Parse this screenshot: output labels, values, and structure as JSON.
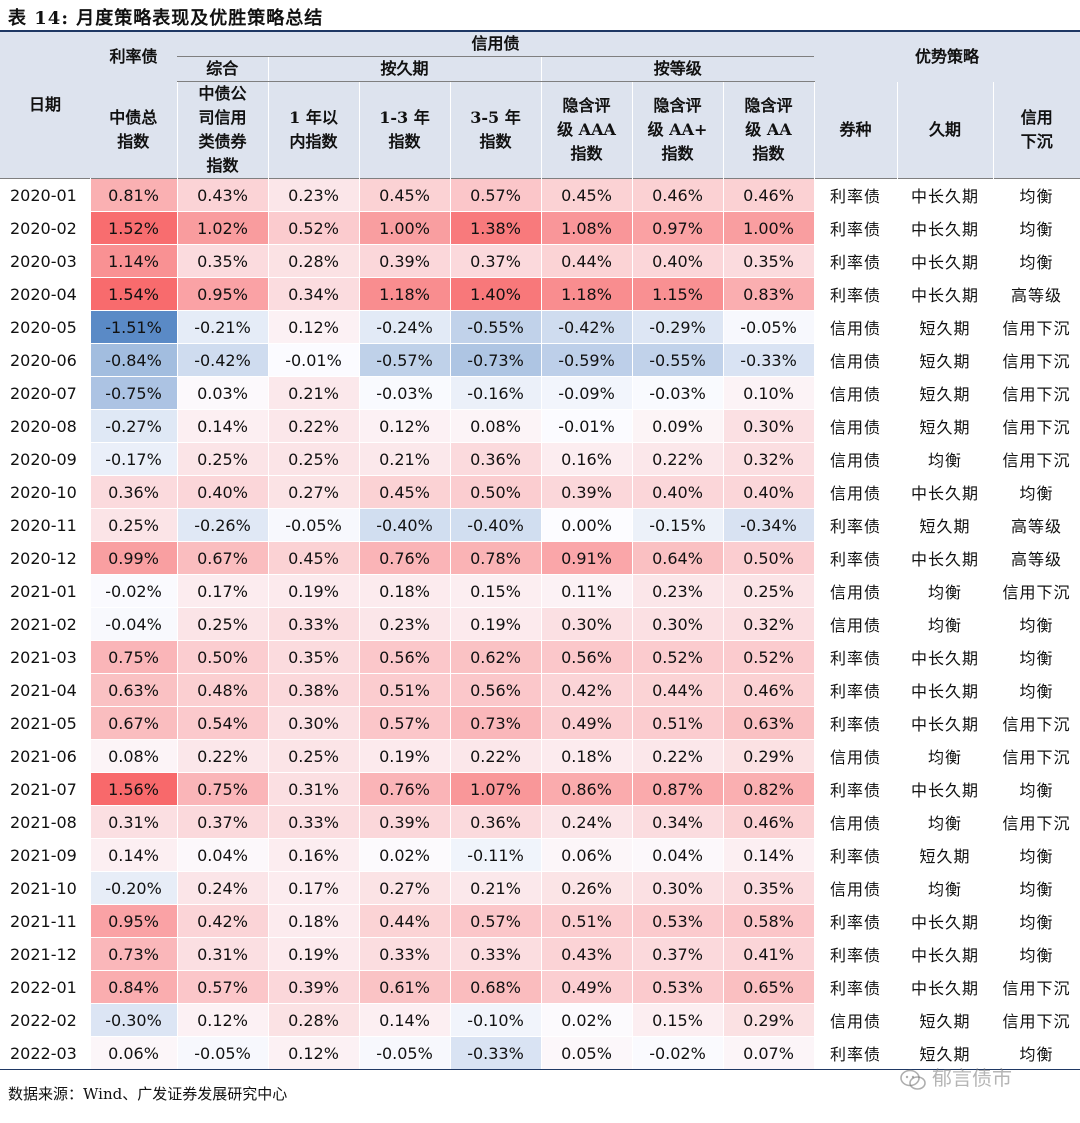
{
  "title": "表 14: 月度策略表现及优胜策略总结",
  "header": {
    "date": "日期",
    "rate_bond": "利率债",
    "credit_bond": "信用债",
    "advantage": "优势策略",
    "composite": "综合",
    "by_duration": "按久期",
    "by_rating": "按等级",
    "columns": [
      "中债总指数",
      "中债公司信用类债券指数",
      "1年以内指数",
      "1-3年指数",
      "3-5年指数",
      "隐含评级AAA指数",
      "隐含评级AA+指数",
      "隐含评级AA指数",
      "券种",
      "久期",
      "信用下沉"
    ]
  },
  "rows": [
    {
      "date": "2020-01",
      "values": [
        "0.81%",
        "0.43%",
        "0.23%",
        "0.45%",
        "0.57%",
        "0.45%",
        "0.46%",
        "0.46%"
      ],
      "nums": [
        0.81,
        0.43,
        0.23,
        0.45,
        0.57,
        0.45,
        0.46,
        0.46
      ],
      "strategy": [
        "利率债",
        "中长久期",
        "均衡"
      ]
    },
    {
      "date": "2020-02",
      "values": [
        "1.52%",
        "1.02%",
        "0.52%",
        "1.00%",
        "1.38%",
        "1.08%",
        "0.97%",
        "1.00%"
      ],
      "nums": [
        1.52,
        1.02,
        0.52,
        1.0,
        1.38,
        1.08,
        0.97,
        1.0
      ],
      "strategy": [
        "利率债",
        "中长久期",
        "均衡"
      ]
    },
    {
      "date": "2020-03",
      "values": [
        "1.14%",
        "0.35%",
        "0.28%",
        "0.39%",
        "0.37%",
        "0.44%",
        "0.40%",
        "0.35%"
      ],
      "nums": [
        1.14,
        0.35,
        0.28,
        0.39,
        0.37,
        0.44,
        0.4,
        0.35
      ],
      "strategy": [
        "利率债",
        "中长久期",
        "均衡"
      ]
    },
    {
      "date": "2020-04",
      "values": [
        "1.54%",
        "0.95%",
        "0.34%",
        "1.18%",
        "1.40%",
        "1.18%",
        "1.15%",
        "0.83%"
      ],
      "nums": [
        1.54,
        0.95,
        0.34,
        1.18,
        1.4,
        1.18,
        1.15,
        0.83
      ],
      "strategy": [
        "利率债",
        "中长久期",
        "高等级"
      ]
    },
    {
      "date": "2020-05",
      "values": [
        "-1.51%",
        "-0.21%",
        "0.12%",
        "-0.24%",
        "-0.55%",
        "-0.42%",
        "-0.29%",
        "-0.05%"
      ],
      "nums": [
        -1.51,
        -0.21,
        0.12,
        -0.24,
        -0.55,
        -0.42,
        -0.29,
        -0.05
      ],
      "strategy": [
        "信用债",
        "短久期",
        "信用下沉"
      ]
    },
    {
      "date": "2020-06",
      "values": [
        "-0.84%",
        "-0.42%",
        "-0.01%",
        "-0.57%",
        "-0.73%",
        "-0.59%",
        "-0.55%",
        "-0.33%"
      ],
      "nums": [
        -0.84,
        -0.42,
        -0.01,
        -0.57,
        -0.73,
        -0.59,
        -0.55,
        -0.33
      ],
      "strategy": [
        "信用债",
        "短久期",
        "信用下沉"
      ]
    },
    {
      "date": "2020-07",
      "values": [
        "-0.75%",
        "0.03%",
        "0.21%",
        "-0.03%",
        "-0.16%",
        "-0.09%",
        "-0.03%",
        "0.10%"
      ],
      "nums": [
        -0.75,
        0.03,
        0.21,
        -0.03,
        -0.16,
        -0.09,
        -0.03,
        0.1
      ],
      "strategy": [
        "信用债",
        "短久期",
        "信用下沉"
      ]
    },
    {
      "date": "2020-08",
      "values": [
        "-0.27%",
        "0.14%",
        "0.22%",
        "0.12%",
        "0.08%",
        "-0.01%",
        "0.09%",
        "0.30%"
      ],
      "nums": [
        -0.27,
        0.14,
        0.22,
        0.12,
        0.08,
        -0.01,
        0.09,
        0.3
      ],
      "strategy": [
        "信用债",
        "短久期",
        "信用下沉"
      ]
    },
    {
      "date": "2020-09",
      "values": [
        "-0.17%",
        "0.25%",
        "0.25%",
        "0.21%",
        "0.36%",
        "0.16%",
        "0.22%",
        "0.32%"
      ],
      "nums": [
        -0.17,
        0.25,
        0.25,
        0.21,
        0.36,
        0.16,
        0.22,
        0.32
      ],
      "strategy": [
        "信用债",
        "均衡",
        "信用下沉"
      ]
    },
    {
      "date": "2020-10",
      "values": [
        "0.36%",
        "0.40%",
        "0.27%",
        "0.45%",
        "0.50%",
        "0.39%",
        "0.40%",
        "0.40%"
      ],
      "nums": [
        0.36,
        0.4,
        0.27,
        0.45,
        0.5,
        0.39,
        0.4,
        0.4
      ],
      "strategy": [
        "信用债",
        "中长久期",
        "均衡"
      ]
    },
    {
      "date": "2020-11",
      "values": [
        "0.25%",
        "-0.26%",
        "-0.05%",
        "-0.40%",
        "-0.40%",
        "0.00%",
        "-0.15%",
        "-0.34%"
      ],
      "nums": [
        0.25,
        -0.26,
        -0.05,
        -0.4,
        -0.4,
        0.0,
        -0.15,
        -0.34
      ],
      "strategy": [
        "利率债",
        "短久期",
        "高等级"
      ]
    },
    {
      "date": "2020-12",
      "values": [
        "0.99%",
        "0.67%",
        "0.45%",
        "0.76%",
        "0.78%",
        "0.91%",
        "0.64%",
        "0.50%"
      ],
      "nums": [
        0.99,
        0.67,
        0.45,
        0.76,
        0.78,
        0.91,
        0.64,
        0.5
      ],
      "strategy": [
        "利率债",
        "中长久期",
        "高等级"
      ]
    },
    {
      "date": "2021-01",
      "values": [
        "-0.02%",
        "0.17%",
        "0.19%",
        "0.18%",
        "0.15%",
        "0.11%",
        "0.23%",
        "0.25%"
      ],
      "nums": [
        -0.02,
        0.17,
        0.19,
        0.18,
        0.15,
        0.11,
        0.23,
        0.25
      ],
      "strategy": [
        "信用债",
        "均衡",
        "信用下沉"
      ]
    },
    {
      "date": "2021-02",
      "values": [
        "-0.04%",
        "0.25%",
        "0.33%",
        "0.23%",
        "0.19%",
        "0.30%",
        "0.30%",
        "0.32%"
      ],
      "nums": [
        -0.04,
        0.25,
        0.33,
        0.23,
        0.19,
        0.3,
        0.3,
        0.32
      ],
      "strategy": [
        "信用债",
        "均衡",
        "均衡"
      ]
    },
    {
      "date": "2021-03",
      "values": [
        "0.75%",
        "0.50%",
        "0.35%",
        "0.56%",
        "0.62%",
        "0.56%",
        "0.52%",
        "0.52%"
      ],
      "nums": [
        0.75,
        0.5,
        0.35,
        0.56,
        0.62,
        0.56,
        0.52,
        0.52
      ],
      "strategy": [
        "利率债",
        "中长久期",
        "均衡"
      ]
    },
    {
      "date": "2021-04",
      "values": [
        "0.63%",
        "0.48%",
        "0.38%",
        "0.51%",
        "0.56%",
        "0.42%",
        "0.44%",
        "0.46%"
      ],
      "nums": [
        0.63,
        0.48,
        0.38,
        0.51,
        0.56,
        0.42,
        0.44,
        0.46
      ],
      "strategy": [
        "利率债",
        "中长久期",
        "均衡"
      ]
    },
    {
      "date": "2021-05",
      "values": [
        "0.67%",
        "0.54%",
        "0.30%",
        "0.57%",
        "0.73%",
        "0.49%",
        "0.51%",
        "0.63%"
      ],
      "nums": [
        0.67,
        0.54,
        0.3,
        0.57,
        0.73,
        0.49,
        0.51,
        0.63
      ],
      "strategy": [
        "利率债",
        "中长久期",
        "信用下沉"
      ]
    },
    {
      "date": "2021-06",
      "values": [
        "0.08%",
        "0.22%",
        "0.25%",
        "0.19%",
        "0.22%",
        "0.18%",
        "0.22%",
        "0.29%"
      ],
      "nums": [
        0.08,
        0.22,
        0.25,
        0.19,
        0.22,
        0.18,
        0.22,
        0.29
      ],
      "strategy": [
        "信用债",
        "均衡",
        "信用下沉"
      ]
    },
    {
      "date": "2021-07",
      "values": [
        "1.56%",
        "0.75%",
        "0.31%",
        "0.76%",
        "1.07%",
        "0.86%",
        "0.87%",
        "0.82%"
      ],
      "nums": [
        1.56,
        0.75,
        0.31,
        0.76,
        1.07,
        0.86,
        0.87,
        0.82
      ],
      "strategy": [
        "利率债",
        "中长久期",
        "均衡"
      ]
    },
    {
      "date": "2021-08",
      "values": [
        "0.31%",
        "0.37%",
        "0.33%",
        "0.39%",
        "0.36%",
        "0.24%",
        "0.34%",
        "0.46%"
      ],
      "nums": [
        0.31,
        0.37,
        0.33,
        0.39,
        0.36,
        0.24,
        0.34,
        0.46
      ],
      "strategy": [
        "信用债",
        "均衡",
        "信用下沉"
      ]
    },
    {
      "date": "2021-09",
      "values": [
        "0.14%",
        "0.04%",
        "0.16%",
        "0.02%",
        "-0.11%",
        "0.06%",
        "0.04%",
        "0.14%"
      ],
      "nums": [
        0.14,
        0.04,
        0.16,
        0.02,
        -0.11,
        0.06,
        0.04,
        0.14
      ],
      "strategy": [
        "利率债",
        "短久期",
        "均衡"
      ]
    },
    {
      "date": "2021-10",
      "values": [
        "-0.20%",
        "0.24%",
        "0.17%",
        "0.27%",
        "0.21%",
        "0.26%",
        "0.30%",
        "0.35%"
      ],
      "nums": [
        -0.2,
        0.24,
        0.17,
        0.27,
        0.21,
        0.26,
        0.3,
        0.35
      ],
      "strategy": [
        "信用债",
        "均衡",
        "均衡"
      ]
    },
    {
      "date": "2021-11",
      "values": [
        "0.95%",
        "0.42%",
        "0.18%",
        "0.44%",
        "0.57%",
        "0.51%",
        "0.53%",
        "0.58%"
      ],
      "nums": [
        0.95,
        0.42,
        0.18,
        0.44,
        0.57,
        0.51,
        0.53,
        0.58
      ],
      "strategy": [
        "利率债",
        "中长久期",
        "均衡"
      ]
    },
    {
      "date": "2021-12",
      "values": [
        "0.73%",
        "0.31%",
        "0.19%",
        "0.33%",
        "0.33%",
        "0.43%",
        "0.37%",
        "0.41%"
      ],
      "nums": [
        0.73,
        0.31,
        0.19,
        0.33,
        0.33,
        0.43,
        0.37,
        0.41
      ],
      "strategy": [
        "利率债",
        "中长久期",
        "均衡"
      ]
    },
    {
      "date": "2022-01",
      "values": [
        "0.84%",
        "0.57%",
        "0.39%",
        "0.61%",
        "0.68%",
        "0.49%",
        "0.53%",
        "0.65%"
      ],
      "nums": [
        0.84,
        0.57,
        0.39,
        0.61,
        0.68,
        0.49,
        0.53,
        0.65
      ],
      "strategy": [
        "利率债",
        "中长久期",
        "信用下沉"
      ]
    },
    {
      "date": "2022-02",
      "values": [
        "-0.30%",
        "0.12%",
        "0.28%",
        "0.14%",
        "-0.10%",
        "0.02%",
        "0.15%",
        "0.29%"
      ],
      "nums": [
        -0.3,
        0.12,
        0.28,
        0.14,
        -0.1,
        0.02,
        0.15,
        0.29
      ],
      "strategy": [
        "信用债",
        "短久期",
        "信用下沉"
      ]
    },
    {
      "date": "2022-03",
      "values": [
        "0.06%",
        "-0.05%",
        "0.12%",
        "-0.05%",
        "-0.33%",
        "0.05%",
        "-0.02%",
        "0.07%"
      ],
      "nums": [
        0.06,
        -0.05,
        0.12,
        -0.05,
        -0.33,
        0.05,
        -0.02,
        0.07
      ],
      "strategy": [
        "利率债",
        "短久期",
        "均衡"
      ]
    }
  ],
  "colors": {
    "positive": "#f8696b",
    "negative": "#5a8ac6",
    "neutral": "#fcfcff",
    "header_bg": "#dde3ee"
  },
  "footer": "数据来源：Wind、广发证券发展研究中心",
  "watermark": "郁言债市"
}
